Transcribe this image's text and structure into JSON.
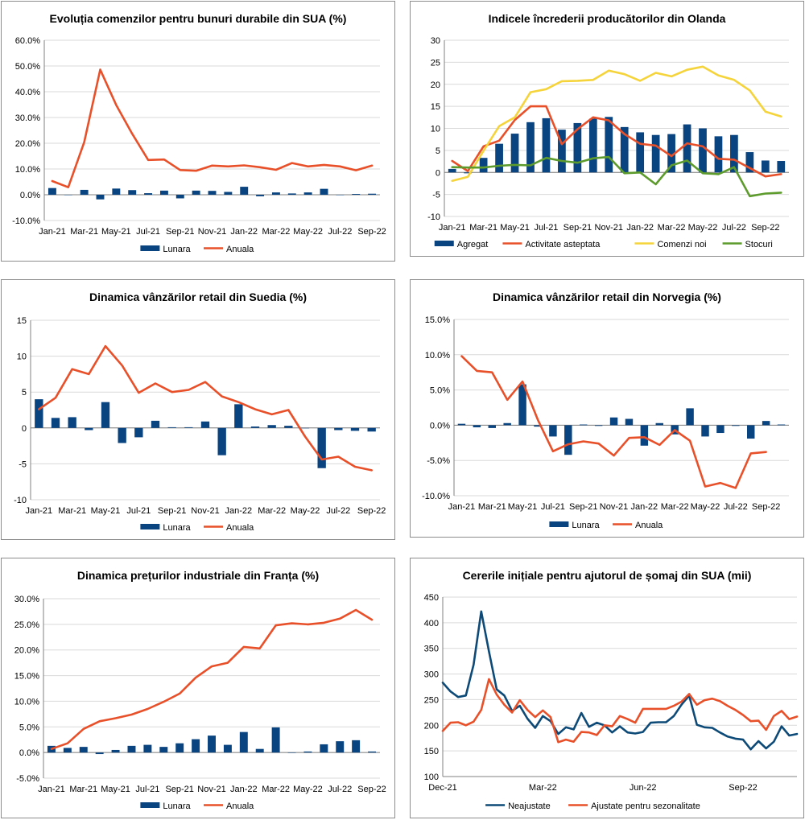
{
  "colors": {
    "bar": "#0a4480",
    "orange": "#e8502a",
    "yellow": "#f5d33a",
    "green": "#5d9b2d",
    "navy_line": "#0d4a78",
    "grid": "#d9d9d9",
    "axis": "#808080"
  },
  "chart_data": [
    {
      "id": "p0",
      "type": "bar",
      "title": "Evoluția comenzilor pentru bunuri durabile din SUA (%)",
      "ylim": [
        -10,
        60
      ],
      "ystep": 10,
      "ytick_format": "pct1",
      "grid": true,
      "legend": "bottom",
      "x_ticks": [
        "Jan-21",
        "Mar-21",
        "May-21",
        "Jul-21",
        "Sep-21",
        "Nov-21",
        "Jan-22",
        "Mar-22",
        "May-22",
        "Jul-22",
        "Sep-22"
      ],
      "bars": [
        {
          "name": "Lunara",
          "values": [
            2.6,
            -0.1,
            1.9,
            -1.8,
            2.4,
            1.8,
            0.6,
            1.6,
            -1.4,
            1.6,
            1.5,
            1.1,
            3.1,
            -0.6,
            0.9,
            0.5,
            0.9,
            2.3,
            -0.1,
            0.3,
            0.4
          ]
        }
      ],
      "lines": [
        {
          "name": "Anuala",
          "color": "orange",
          "values": [
            5.3,
            2.9,
            20.4,
            48.6,
            34.8,
            23.7,
            13.5,
            13.7,
            9.6,
            9.3,
            11.3,
            11.0,
            11.4,
            10.7,
            9.7,
            12.3,
            11.0,
            11.6,
            11.0,
            9.5,
            11.3
          ]
        }
      ]
    },
    {
      "id": "p1",
      "type": "bar",
      "title": "Indicele încrederii producătorilor din Olanda",
      "ylim": [
        -10,
        30
      ],
      "ystep": 5,
      "ytick_format": "int",
      "grid": true,
      "legend": "bottom",
      "x_ticks": [
        "Jan-21",
        "Mar-21",
        "May-21",
        "Jul-21",
        "Sep-21",
        "Nov-21",
        "Jan-22",
        "Mar-22",
        "May-22",
        "Jul-22",
        "Sep-22"
      ],
      "bars": [
        {
          "name": "Agregat",
          "values": [
            0.8,
            -0.2,
            3.3,
            6.5,
            8.8,
            11.4,
            12.3,
            9.7,
            11.2,
            12.2,
            12.6,
            10.3,
            9.1,
            8.5,
            8.7,
            10.9,
            10.0,
            8.2,
            8.5,
            4.6,
            2.7,
            2.6
          ]
        }
      ],
      "lines": [
        {
          "name": "Activitate asteptata",
          "color": "orange",
          "values": [
            2.6,
            0.3,
            5.9,
            7.2,
            11.9,
            15.0,
            15.0,
            6.4,
            9.8,
            12.5,
            11.8,
            8.7,
            6.5,
            6.1,
            3.7,
            6.6,
            5.9,
            3.1,
            2.9,
            1.0,
            -0.9,
            -0.4
          ]
        },
        {
          "name": "Comenzi noi",
          "color": "yellow",
          "values": [
            -1.9,
            -1.0,
            4.9,
            10.5,
            12.5,
            18.2,
            18.9,
            20.7,
            20.8,
            21.0,
            23.1,
            22.3,
            20.8,
            22.6,
            21.8,
            23.3,
            24.0,
            22.0,
            21.0,
            18.6,
            13.8,
            12.7
          ]
        },
        {
          "name": "Stocuri",
          "color": "green",
          "values": [
            1.2,
            1.1,
            1.1,
            1.5,
            1.7,
            1.6,
            3.3,
            2.6,
            2.2,
            3.2,
            3.5,
            -0.2,
            0.0,
            -2.7,
            1.6,
            2.7,
            -0.2,
            -0.4,
            1.2,
            -5.4,
            -4.8,
            -4.6
          ]
        }
      ]
    },
    {
      "id": "p2",
      "type": "bar",
      "title": "Dinamica vânzărilor retail din Suedia (%)",
      "ylim": [
        -10,
        15
      ],
      "ystep": 5,
      "ytick_format": "int",
      "grid": true,
      "legend": "bottom",
      "x_ticks": [
        "Jan-21",
        "Mar-21",
        "May-21",
        "Jul-21",
        "Sep-21",
        "Nov-21",
        "Jan-22",
        "Mar-22",
        "May-22",
        "Jul-22",
        "Sep-22"
      ],
      "bars": [
        {
          "name": "Lunara",
          "values": [
            4.0,
            1.4,
            1.5,
            -0.3,
            3.6,
            -2.1,
            -1.3,
            1.0,
            0.1,
            0.1,
            0.9,
            -3.8,
            3.3,
            0.2,
            0.4,
            0.3,
            0.0,
            -5.6,
            -0.3,
            -0.4,
            -0.5
          ]
        }
      ],
      "lines": [
        {
          "name": "Anuala",
          "color": "orange",
          "values": [
            2.6,
            4.2,
            8.2,
            7.5,
            11.4,
            8.7,
            4.9,
            6.2,
            5.0,
            5.3,
            6.4,
            4.4,
            3.6,
            2.6,
            1.9,
            2.5,
            -1.2,
            -4.4,
            -4.0,
            -5.4,
            -5.9
          ]
        }
      ]
    },
    {
      "id": "p3",
      "type": "bar",
      "title": "Dinamica vânzărilor retail din Norvegia (%)",
      "ylim": [
        -10,
        15
      ],
      "ystep": 5,
      "ytick_format": "pct1",
      "grid": true,
      "legend": "bottom",
      "x_ticks": [
        "Jan-21",
        "Mar-21",
        "May-21",
        "Jul-21",
        "Sep-21",
        "Nov-21",
        "Jan-22",
        "Mar-22",
        "May-22",
        "Jul-22",
        "Sep-22"
      ],
      "bars": [
        {
          "name": "Lunara",
          "values": [
            0.2,
            -0.3,
            -0.4,
            0.3,
            5.8,
            -0.2,
            -1.6,
            -4.2,
            0.1,
            -0.1,
            1.1,
            0.9,
            -2.9,
            0.3,
            -1.3,
            2.4,
            -1.6,
            -1.1,
            -0.1,
            -1.9,
            0.6,
            0.1
          ]
        }
      ],
      "lines": [
        {
          "name": "Anuala",
          "color": "orange",
          "values": [
            9.8,
            7.7,
            7.5,
            3.6,
            6.2,
            0.8,
            -3.7,
            -2.7,
            -2.3,
            -2.6,
            -4.3,
            -1.8,
            -1.7,
            -2.8,
            -0.7,
            -2.2,
            -8.7,
            -8.2,
            -8.9,
            -4.0,
            -3.8
          ]
        }
      ]
    },
    {
      "id": "p4",
      "type": "bar",
      "title": "Dinamica prețurilor industriale din Franța (%)",
      "ylim": [
        -5,
        30
      ],
      "ystep": 5,
      "ytick_format": "pct1",
      "grid": true,
      "legend": "bottom",
      "x_ticks": [
        "Jan-21",
        "Mar-21",
        "May-21",
        "Jul-21",
        "Sep-21",
        "Nov-21",
        "Jan-22",
        "Mar-22",
        "May-22",
        "Jul-22",
        "Sep-22"
      ],
      "bars": [
        {
          "name": "Lunara",
          "values": [
            1.3,
            0.9,
            1.1,
            -0.3,
            0.5,
            1.3,
            1.5,
            1.1,
            1.8,
            2.6,
            3.3,
            1.5,
            4.0,
            0.7,
            4.9,
            0.0,
            0.2,
            1.6,
            2.2,
            2.4,
            0.2
          ]
        }
      ],
      "lines": [
        {
          "name": "Anuala",
          "color": "orange",
          "values": [
            0.7,
            1.8,
            4.6,
            6.1,
            6.7,
            7.4,
            8.5,
            9.9,
            11.5,
            14.6,
            16.8,
            17.5,
            20.6,
            20.3,
            24.8,
            25.2,
            25.0,
            25.3,
            26.1,
            27.8,
            25.9
          ]
        }
      ]
    },
    {
      "id": "p5",
      "type": "line",
      "title": "Cererile inițiale pentru ajutorul de șomaj din SUA (mii)",
      "ylim": [
        100,
        450
      ],
      "ystep": 50,
      "ytick_format": "int",
      "grid": true,
      "legend": "bottom",
      "x_ticks": [
        "Dec-21",
        "Mar-22",
        "Jun-22",
        "Sep-22"
      ],
      "tick_index": [
        0,
        13,
        26,
        39
      ],
      "lines": [
        {
          "name": "Neajustate",
          "color": "navy_line",
          "values": [
            283,
            266,
            255,
            258,
            318,
            422,
            344,
            270,
            258,
            228,
            238,
            213,
            195,
            218,
            208,
            183,
            196,
            192,
            224,
            197,
            205,
            200,
            186,
            198,
            186,
            184,
            187,
            205,
            206,
            206,
            218,
            240,
            258,
            201,
            196,
            195,
            186,
            178,
            174,
            172,
            153,
            169,
            155,
            168,
            198,
            180,
            183
          ]
        },
        {
          "name": "Ajustate pentru sezonalitate",
          "color": "orange",
          "values": [
            189,
            205,
            206,
            200,
            207,
            230,
            290,
            260,
            240,
            225,
            249,
            230,
            216,
            229,
            216,
            167,
            172,
            168,
            187,
            186,
            181,
            200,
            198,
            218,
            212,
            205,
            232,
            232,
            232,
            232,
            238,
            246,
            261,
            240,
            249,
            252,
            247,
            238,
            230,
            220,
            208,
            209,
            191,
            218,
            228,
            212,
            217
          ]
        }
      ]
    }
  ]
}
